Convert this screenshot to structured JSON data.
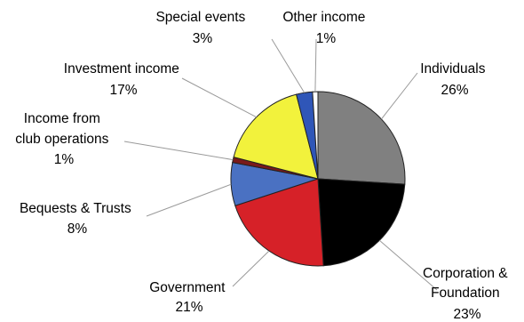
{
  "chart_data": {
    "type": "pie",
    "start_angle_deg": 0,
    "direction": "clockwise",
    "slices": [
      {
        "label": "Individuals",
        "value": 26,
        "display": "26%",
        "color": "#808080"
      },
      {
        "label": "Corporation & Foundation",
        "label_lines": [
          "Corporation &",
          "Foundation"
        ],
        "value": 23,
        "display": "23%",
        "color": "#000000"
      },
      {
        "label": "Government",
        "value": 21,
        "display": "21%",
        "color": "#d62128"
      },
      {
        "label": "Bequests & Trusts",
        "value": 8,
        "display": "8%",
        "color": "#4a71c2"
      },
      {
        "label": "Income from club operations",
        "label_lines": [
          "Income from",
          "club operations"
        ],
        "value": 1,
        "display": "1%",
        "color": "#7a1a1a"
      },
      {
        "label": "Investment income",
        "value": 17,
        "display": "17%",
        "color": "#f2f23c"
      },
      {
        "label": "Special events",
        "value": 3,
        "display": "3%",
        "color": "#2f56b8"
      },
      {
        "label": "Other income",
        "value": 1,
        "display": "1%",
        "color": "#ffffff"
      }
    ]
  }
}
